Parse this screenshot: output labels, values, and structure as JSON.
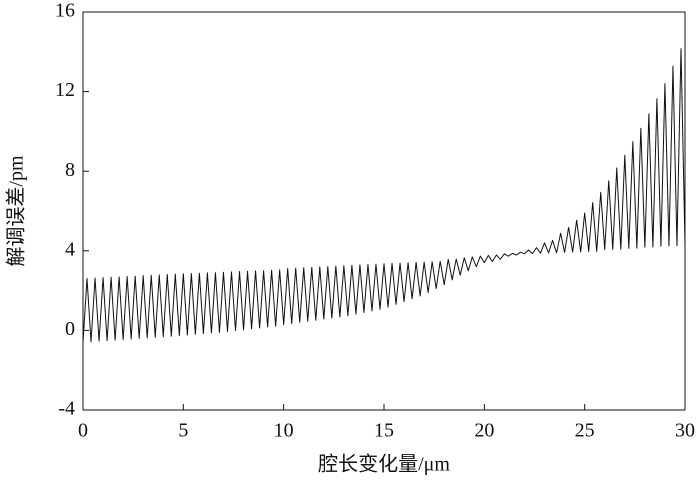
{
  "chart_data": {
    "type": "line",
    "x_label": "腔长变化量/μm",
    "y_label": "解调误差/pm",
    "xlim": [
      0,
      30
    ],
    "xticks": [
      0,
      5,
      10,
      15,
      20,
      25,
      30
    ],
    "ylim": [
      -4,
      16
    ],
    "yticks": [
      -4,
      0,
      4,
      8,
      12,
      16
    ],
    "series": [
      {
        "color": "#111111",
        "x": [
          0,
          0.2,
          0.4,
          0.6,
          0.8,
          1,
          1.2,
          1.4,
          1.6,
          1.8,
          2,
          2.2,
          2.4,
          2.6,
          2.8,
          3,
          3.2,
          3.4,
          3.6,
          3.8,
          4,
          4.2,
          4.4,
          4.6,
          4.8,
          5,
          5.2,
          5.4,
          5.6,
          5.8,
          6,
          6.2,
          6.4,
          6.6,
          6.8,
          7,
          7.2,
          7.4,
          7.6,
          7.8,
          8,
          8.2,
          8.4,
          8.6,
          8.8,
          9,
          9.2,
          9.4,
          9.6,
          9.8,
          10,
          10.2,
          10.4,
          10.6,
          10.8,
          11,
          11.2,
          11.4,
          11.6,
          11.8,
          12,
          12.2,
          12.4,
          12.6,
          12.8,
          13,
          13.2,
          13.4,
          13.6,
          13.8,
          14,
          14.2,
          14.4,
          14.6,
          14.8,
          15,
          15.2,
          15.4,
          15.6,
          15.8,
          16,
          16.2,
          16.4,
          16.6,
          16.8,
          17,
          17.2,
          17.4,
          17.6,
          17.8,
          18,
          18.2,
          18.4,
          18.6,
          18.8,
          19,
          19.2,
          19.4,
          19.6,
          19.8,
          20,
          20.2,
          20.4,
          20.6,
          20.8,
          21,
          21.2,
          21.4,
          21.6,
          21.8,
          22,
          22.2,
          22.4,
          22.6,
          22.8,
          23,
          23.2,
          23.4,
          23.6,
          23.8,
          24,
          24.2,
          24.4,
          24.6,
          24.8,
          25,
          25.2,
          25.4,
          25.6,
          25.8,
          26,
          26.2,
          26.4,
          26.6,
          26.8,
          27,
          27.2,
          27.4,
          27.6,
          27.8,
          28,
          28.2,
          28.4,
          28.6,
          28.8,
          29,
          29.2,
          29.4,
          29.6,
          29.8,
          30
        ],
        "values": [
          -0.6,
          2.61,
          -0.57,
          2.63,
          -0.54,
          2.65,
          -0.52,
          2.67,
          -0.49,
          2.69,
          -0.46,
          2.71,
          -0.43,
          2.73,
          -0.4,
          2.75,
          -0.38,
          2.77,
          -0.35,
          2.79,
          -0.32,
          2.81,
          -0.29,
          2.83,
          -0.26,
          2.85,
          -0.23,
          2.86,
          -0.19,
          2.87,
          -0.16,
          2.89,
          -0.12,
          2.9,
          -0.1,
          2.92,
          -0.06,
          2.94,
          -0.01,
          2.96,
          0.03,
          2.97,
          0.08,
          2.99,
          0.12,
          3.0,
          0.17,
          3.02,
          0.21,
          3.04,
          0.3,
          3.11,
          0.35,
          3.13,
          0.41,
          3.15,
          0.46,
          3.17,
          0.51,
          3.19,
          0.57,
          3.21,
          0.62,
          3.23,
          0.67,
          3.25,
          0.74,
          3.27,
          0.82,
          3.29,
          0.9,
          3.31,
          0.98,
          3.33,
          1.06,
          3.35,
          1.17,
          3.37,
          1.31,
          3.38,
          1.45,
          3.4,
          1.59,
          3.42,
          1.73,
          3.43,
          1.9,
          3.45,
          2.1,
          3.47,
          2.3,
          3.57,
          2.54,
          3.59,
          2.78,
          3.65,
          3.0,
          3.69,
          3.2,
          3.73,
          3.4,
          3.77,
          3.46,
          3.79,
          3.58,
          3.85,
          3.73,
          3.87,
          3.79,
          3.93,
          3.85,
          4.04,
          3.86,
          4.16,
          3.88,
          4.4,
          3.89,
          4.52,
          3.9,
          4.88,
          3.92,
          5.18,
          3.93,
          5.54,
          3.94,
          5.9,
          3.96,
          6.42,
          3.97,
          6.94,
          4.06,
          7.52,
          4.07,
          8.16,
          4.08,
          8.8,
          4.12,
          9.48,
          4.13,
          10.16,
          4.18,
          10.88,
          4.19,
          11.64,
          4.22,
          12.4,
          4.24,
          13.28,
          4.26,
          14.16,
          4.3
        ]
      }
    ]
  }
}
